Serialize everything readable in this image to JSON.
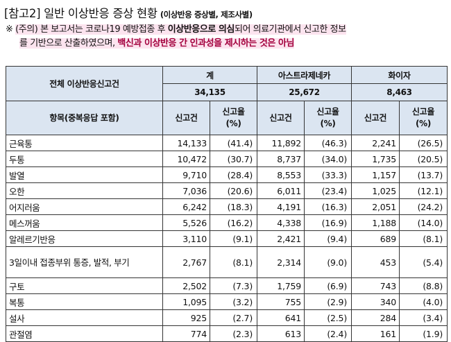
{
  "title": {
    "main": "[참고2] 일반 이상반응 증상 현황",
    "sub": "(이상반응 증상별, 제조사별)"
  },
  "note": {
    "mark": "※",
    "p1": "(주의) 본 보고서는 코로나19 예방접종 후 ",
    "b1": "이상반응으로 의심",
    "p2": "되어 의료기관에서 신고한 정보",
    "p3": "를 기반으로 산출하였으며, ",
    "b2": "백신과 이상반응 간 인과성을 제시하는 것은 아님"
  },
  "table": {
    "total_label": "전체 이상반응신고건",
    "groups": [
      "계",
      "아스트라제네카",
      "화이자"
    ],
    "totals": [
      "34,135",
      "25,672",
      "8,463"
    ],
    "item_header": "항목(중복응답 포함)",
    "col_count": "신고건",
    "col_rate": "신고율\n(%)",
    "rows": [
      {
        "item": "근육통",
        "v": [
          "14,133",
          "(41.4)",
          "11,892",
          "(46.3)",
          "2,241",
          "(26.5)"
        ]
      },
      {
        "item": "두통",
        "v": [
          "10,472",
          "(30.7)",
          "8,737",
          "(34.0)",
          "1,735",
          "(20.5)"
        ]
      },
      {
        "item": "발열",
        "v": [
          "9,710",
          "(28.4)",
          "8,553",
          "(33.3)",
          "1,157",
          "(13.7)"
        ]
      },
      {
        "item": "오한",
        "v": [
          "7,036",
          "(20.6)",
          "6,011",
          "(23.4)",
          "1,025",
          "(12.1)"
        ]
      },
      {
        "item": "어지러움",
        "v": [
          "6,242",
          "(18.3)",
          "4,191",
          "(16.3)",
          "2,051",
          "(24.2)"
        ]
      },
      {
        "item": "메스꺼움",
        "v": [
          "5,526",
          "(16.2)",
          "4,338",
          "(16.9)",
          "1,188",
          "(14.0)"
        ]
      },
      {
        "item": "알레르기반응",
        "v": [
          "3,110",
          "(9.1)",
          "2,421",
          "(9.4)",
          "689",
          "(8.1)"
        ]
      },
      {
        "item": "3일이내 접종부위 통증, 발적, 부기",
        "v": [
          "2,767",
          "(8.1)",
          "2,314",
          "(9.0)",
          "453",
          "(5.4)"
        ]
      },
      {
        "item": "구토",
        "v": [
          "2,502",
          "(7.3)",
          "1,759",
          "(6.9)",
          "743",
          "(8.8)"
        ]
      },
      {
        "item": "복통",
        "v": [
          "1,095",
          "(3.2)",
          "755",
          "(2.9)",
          "340",
          "(4.0)"
        ]
      },
      {
        "item": "설사",
        "v": [
          "925",
          "(2.7)",
          "641",
          "(2.5)",
          "284",
          "(3.4)"
        ]
      },
      {
        "item": "관절염",
        "v": [
          "774",
          "(2.3)",
          "613",
          "(2.4)",
          "161",
          "(1.9)"
        ]
      }
    ]
  }
}
